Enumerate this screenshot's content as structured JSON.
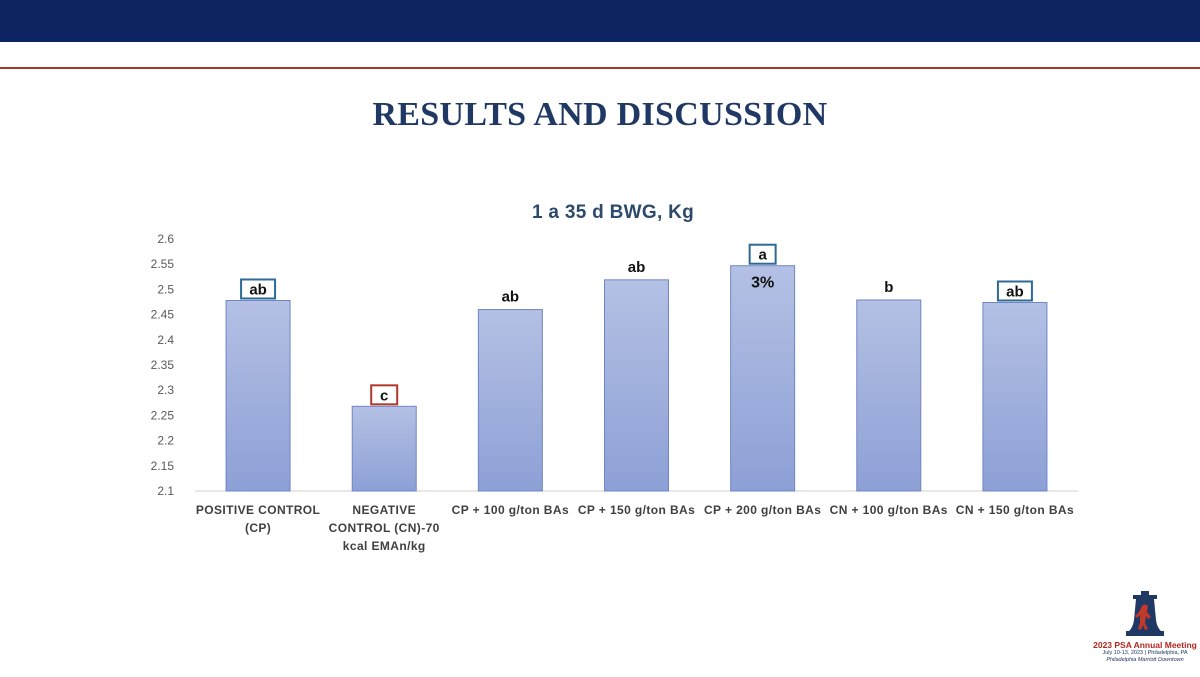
{
  "slide": {
    "title": "RESULTS AND DISCUSSION"
  },
  "colors": {
    "band": "#0c2461",
    "rule": "#a0392b",
    "bar_fill_top": "#b4c0e4",
    "bar_fill_bottom": "#8da0d6",
    "bar_stroke": "#6f86c4",
    "box_blue": "#2e6a96",
    "box_red": "#b0392b"
  },
  "chart_data": {
    "type": "bar",
    "title": "1 a 35 d BWG, Kg",
    "xlabel": "",
    "ylabel": "",
    "ylim": [
      2.1,
      2.6
    ],
    "yticks": [
      2.6,
      2.55,
      2.5,
      2.45,
      2.4,
      2.35,
      2.3,
      2.25,
      2.2,
      2.15,
      2.1
    ],
    "ytick_labels": [
      "2.6",
      "2.55",
      "2.5",
      "2.45",
      "2.4",
      "2.35",
      "2.3",
      "2.25",
      "2.2",
      "2.15",
      "2.1"
    ],
    "grid": false,
    "legend": "none",
    "categories": [
      [
        "POSITIVE CONTROL",
        "(CP)"
      ],
      [
        "NEGATIVE",
        "CONTROL (CN)-70",
        "kcal EMAn/kg"
      ],
      [
        "CP + 100 g/ton BAs"
      ],
      [
        "CP + 150 g/ton BAs"
      ],
      [
        "CP + 200 g/ton BAs"
      ],
      [
        "CN + 100 g/ton BAs"
      ],
      [
        "CN + 150 g/ton BAs"
      ]
    ],
    "values": [
      2.478,
      2.268,
      2.46,
      2.519,
      2.547,
      2.479,
      2.474
    ],
    "annotations": [
      {
        "bar": 0,
        "text": "ab",
        "boxed": true,
        "box_color": "blue"
      },
      {
        "bar": 1,
        "text": "c",
        "boxed": true,
        "box_color": "red"
      },
      {
        "bar": 2,
        "text": "ab",
        "boxed": false
      },
      {
        "bar": 3,
        "text": "ab",
        "boxed": false
      },
      {
        "bar": 4,
        "text": "a",
        "boxed": true,
        "box_color": "blue"
      },
      {
        "bar": 5,
        "text": "b",
        "boxed": false
      },
      {
        "bar": 6,
        "text": "ab",
        "boxed": true,
        "box_color": "blue"
      }
    ],
    "bar_inner_labels": [
      {
        "bar": 4,
        "text": "3%"
      }
    ]
  },
  "logo": {
    "line1": "2023 PSA Annual Meeting",
    "line2": "July 10-13, 2023 | Philadelphia, PA",
    "line3": "Philadelphia Marriott Downtown"
  }
}
